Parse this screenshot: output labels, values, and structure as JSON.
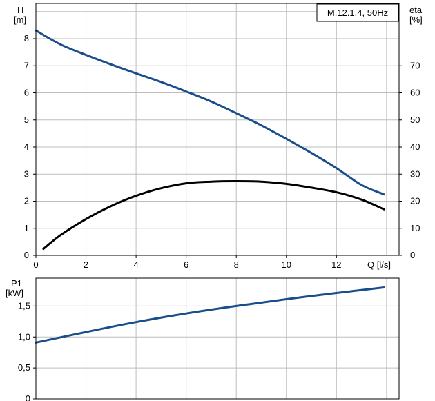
{
  "chart_data": [
    {
      "type": "line",
      "title": "M.12.1.4, 50Hz",
      "xlabel": "Q [l/s]",
      "ylabel_left_name": "H",
      "ylabel_left_unit": "[m]",
      "ylabel_right_name": "eta",
      "ylabel_right_unit": "[%]",
      "xlim": [
        0,
        14.5
      ],
      "ylim_left": [
        0,
        9.3
      ],
      "ylim_right": [
        0,
        93
      ],
      "grid": true,
      "x_ticks": [
        "0",
        "2",
        "4",
        "6",
        "8",
        "10",
        "12"
      ],
      "y_ticks_left": [
        "0",
        "1",
        "2",
        "3",
        "4",
        "5",
        "6",
        "7",
        "8"
      ],
      "y_ticks_right": [
        "0",
        "10",
        "20",
        "30",
        "40",
        "50",
        "60",
        "70"
      ],
      "series": [
        {
          "axis": "left",
          "color": "#1a4e8a",
          "points": [
            [
              0,
              8.3
            ],
            [
              1,
              7.78
            ],
            [
              2,
              7.4
            ],
            [
              3,
              7.05
            ],
            [
              4,
              6.72
            ],
            [
              5,
              6.4
            ],
            [
              6,
              6.05
            ],
            [
              7,
              5.68
            ],
            [
              8,
              5.25
            ],
            [
              9,
              4.8
            ],
            [
              10,
              4.3
            ],
            [
              11,
              3.78
            ],
            [
              12,
              3.22
            ],
            [
              13,
              2.6
            ],
            [
              13.9,
              2.25
            ]
          ]
        },
        {
          "axis": "right",
          "color": "#000000",
          "points": [
            [
              0.3,
              2.4
            ],
            [
              1,
              7.6
            ],
            [
              2,
              13.4
            ],
            [
              3,
              18.2
            ],
            [
              4,
              22
            ],
            [
              5,
              24.8
            ],
            [
              6,
              26.6
            ],
            [
              7,
              27.2
            ],
            [
              8,
              27.4
            ],
            [
              9,
              27.2
            ],
            [
              10,
              26.4
            ],
            [
              11,
              25
            ],
            [
              12,
              23.3
            ],
            [
              13,
              20.6
            ],
            [
              13.9,
              17
            ]
          ]
        }
      ]
    },
    {
      "type": "line",
      "title": "",
      "xlabel": "",
      "ylabel_name": "P1",
      "ylabel_unit": "[kW]",
      "xlim": [
        0,
        14.5
      ],
      "ylim": [
        0,
        1.95
      ],
      "grid": true,
      "y_ticks": [
        "0",
        "0,5",
        "1,0",
        "1,5"
      ],
      "series": [
        {
          "color": "#1a4e8a",
          "points": [
            [
              0,
              0.91
            ],
            [
              2,
              1.08
            ],
            [
              4,
              1.24
            ],
            [
              6,
              1.38
            ],
            [
              8,
              1.5
            ],
            [
              10,
              1.61
            ],
            [
              12,
              1.71
            ],
            [
              13.9,
              1.8
            ]
          ]
        }
      ]
    }
  ]
}
